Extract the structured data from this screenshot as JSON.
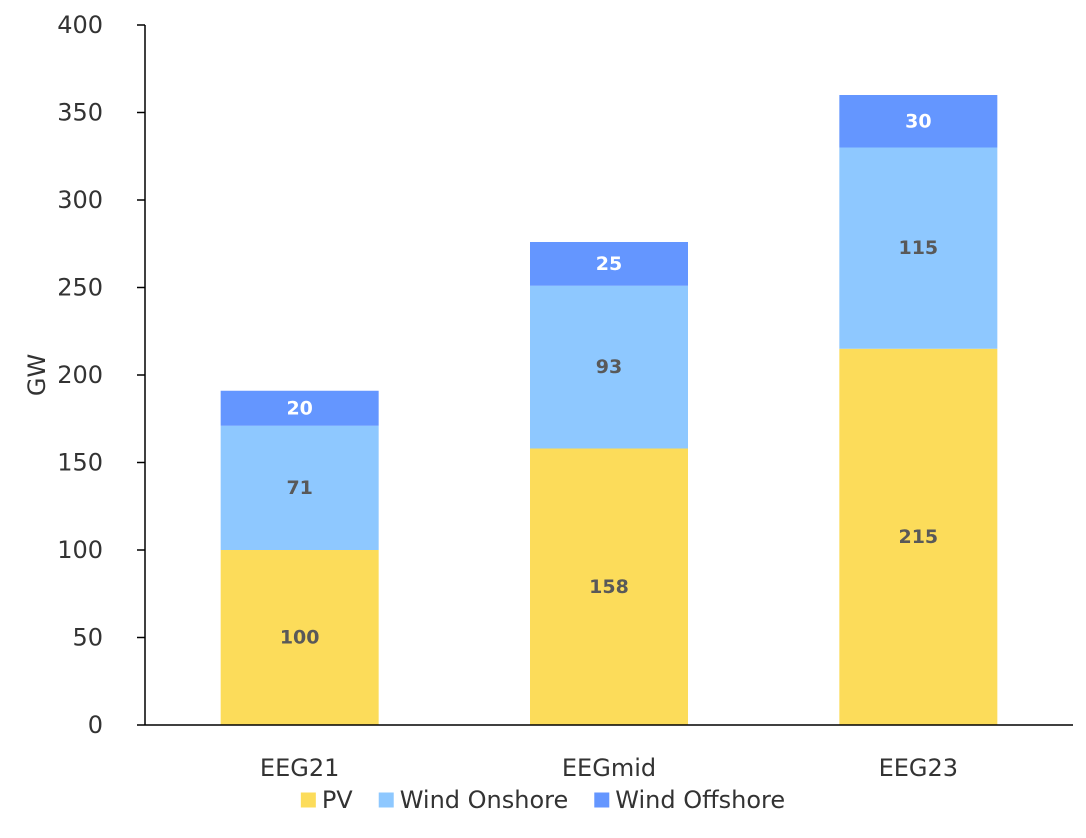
{
  "chart_data": {
    "type": "bar",
    "stacked": true,
    "categories": [
      "EEG21",
      "EEGmid",
      "EEG23"
    ],
    "series": [
      {
        "name": "PV",
        "values": [
          100,
          158,
          215
        ],
        "color": "#FCDC5A",
        "label_color": "#595959"
      },
      {
        "name": "Wind Onshore",
        "values": [
          71,
          93,
          115
        ],
        "color": "#8EC8FF",
        "label_color": "#595959"
      },
      {
        "name": "Wind Offshore",
        "values": [
          20,
          25,
          30
        ],
        "color": "#6496FF",
        "label_color": "#ffffff"
      }
    ],
    "ylabel": "GW",
    "ylim": [
      0,
      400
    ],
    "yticks": [
      0,
      50,
      100,
      150,
      200,
      250,
      300,
      350,
      400
    ],
    "grid": false,
    "legend_position": "bottom"
  }
}
